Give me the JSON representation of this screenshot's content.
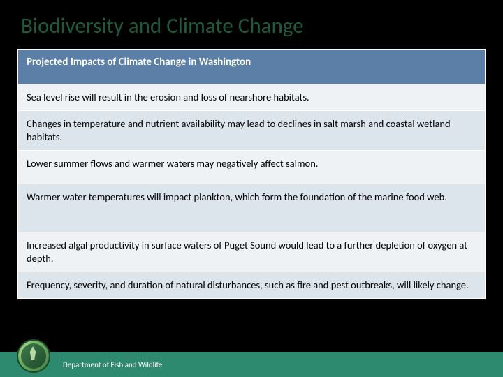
{
  "slide": {
    "title": "Biodiversity and Climate Change",
    "title_color": "#1f5a3a",
    "title_fontsize": 31,
    "background_color": "#000000"
  },
  "table": {
    "header": {
      "text": "Projected Impacts of Climate Change in Washington",
      "background_color": "#5b7fa6",
      "text_color": "#ffffff",
      "fontsize": 15,
      "font_weight": "bold"
    },
    "rows": [
      {
        "text": "Sea level rise will result in the erosion and loss of nearshore habitats.",
        "background_color": "#eef2f5"
      },
      {
        "text": "Changes in temperature and nutrient availability may lead to declines in salt marsh and coastal wetland habitats.",
        "background_color": "#dde5ec"
      },
      {
        "text": "Lower summer flows and warmer waters may negatively affect salmon.",
        "background_color": "#eef2f5"
      },
      {
        "text": "Warmer water temperatures will impact plankton, which form the foundation of the marine food web.",
        "background_color": "#dde5ec"
      },
      {
        "text": "Increased algal productivity in surface waters of Puget Sound would lead to a further depletion of oxygen at depth.",
        "background_color": "#eef2f5"
      },
      {
        "text": "Frequency, severity, and duration of natural disturbances, such as fire and pest outbreaks, will likely change.",
        "background_color": "#dde5ec"
      }
    ],
    "row_fontsize": 14.5,
    "row_text_color": "#000000",
    "border_color": "#ffffff"
  },
  "footer": {
    "text": "Department of Fish and Wildlife",
    "background_color": "#2d8a6f",
    "text_color": "#ffffff",
    "fontsize": 11,
    "logo_colors": {
      "outer_light": "#c9e8b8",
      "outer_mid": "#7ab864",
      "outer_dark": "#2d6b3a",
      "border": "#1a4a2a"
    }
  }
}
